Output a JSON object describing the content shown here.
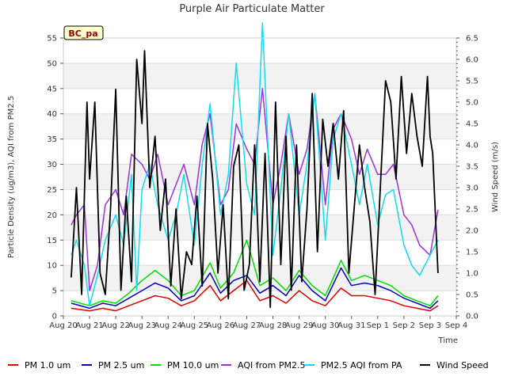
{
  "chart_data": {
    "type": "line",
    "title": "Purple Air Particulate Matter",
    "site_label": "BC_pa",
    "xlabel": "Time",
    "ylabel": "Particle Density (ug/m3), AQI from PM2.5",
    "y2label": "Wind Speed (m/s)",
    "x_ticks": [
      "Aug 20",
      "Aug 21",
      "Aug 22",
      "Aug 23",
      "Aug 24",
      "Aug 25",
      "Aug 26",
      "Aug 27",
      "Aug 28",
      "Aug 29",
      "Aug 30",
      "Aug 31",
      "Sep 1",
      "Sep 2",
      "Sep 3",
      "Sep 4"
    ],
    "x_range_days": [
      0,
      15
    ],
    "ylim": [
      0,
      55
    ],
    "y_ticks": [
      0,
      5,
      10,
      15,
      20,
      25,
      30,
      35,
      40,
      45,
      50,
      55
    ],
    "y2lim": [
      0,
      6.5
    ],
    "y2_ticks": [
      "0.0",
      "0.5",
      "1.0",
      "1.5",
      "2.0",
      "2.5",
      "3.0",
      "3.5",
      "4.0",
      "4.5",
      "5.0",
      "5.5",
      "6.0",
      "6.5"
    ],
    "grid": true,
    "legend_position": "bottom",
    "series": [
      {
        "name": "PM 1.0 um",
        "color": "#dd0000",
        "axis": "left",
        "x": [
          0.3,
          1.0,
          1.5,
          2.0,
          2.5,
          3.0,
          3.5,
          4.0,
          4.5,
          5.0,
          5.6,
          6.0,
          6.5,
          7.0,
          7.5,
          8.0,
          8.5,
          9.0,
          9.5,
          10.0,
          10.6,
          11.0,
          11.5,
          12.0,
          12.5,
          13.0,
          13.5,
          14.0,
          14.3
        ],
        "y": [
          1.5,
          1.0,
          1.5,
          1.0,
          2.0,
          3.0,
          4.0,
          3.5,
          2.0,
          3.0,
          6.0,
          3.0,
          5.0,
          7.0,
          3.0,
          4.0,
          2.5,
          5.0,
          3.0,
          2.0,
          5.5,
          4.0,
          4.0,
          3.5,
          3.0,
          2.0,
          1.5,
          1.0,
          2.0
        ]
      },
      {
        "name": "PM 2.5 um",
        "color": "#0000bb",
        "axis": "left",
        "x": [
          0.3,
          1.0,
          1.5,
          2.0,
          2.5,
          3.0,
          3.5,
          4.0,
          4.5,
          5.0,
          5.6,
          6.0,
          6.5,
          7.0,
          7.5,
          8.0,
          8.5,
          9.0,
          9.5,
          10.0,
          10.6,
          11.0,
          11.5,
          12.0,
          12.5,
          13.0,
          13.5,
          14.0,
          14.3
        ],
        "y": [
          2.5,
          1.5,
          2.5,
          2.0,
          3.5,
          5.0,
          6.5,
          5.5,
          3.0,
          4.0,
          8.5,
          4.5,
          7.0,
          8.0,
          4.5,
          6.0,
          4.0,
          8.0,
          5.0,
          3.0,
          9.5,
          6.0,
          6.5,
          6.0,
          5.0,
          3.5,
          2.5,
          1.5,
          3.0
        ]
      },
      {
        "name": "PM 10.0 um",
        "color": "#00dd00",
        "axis": "left",
        "x": [
          0.3,
          1.0,
          1.5,
          2.0,
          2.5,
          3.0,
          3.5,
          4.0,
          4.5,
          5.0,
          5.6,
          6.0,
          6.5,
          7.0,
          7.5,
          8.0,
          8.5,
          9.0,
          9.5,
          10.0,
          10.6,
          11.0,
          11.5,
          12.0,
          12.5,
          13.0,
          13.5,
          14.0,
          14.3
        ],
        "y": [
          3.0,
          2.0,
          3.0,
          2.5,
          4.5,
          7.0,
          9.0,
          7.0,
          4.0,
          5.0,
          10.5,
          5.5,
          8.5,
          15.0,
          6.0,
          7.5,
          5.0,
          9.0,
          6.0,
          4.0,
          11.0,
          7.0,
          8.0,
          7.0,
          6.0,
          4.0,
          3.0,
          2.0,
          4.0
        ]
      },
      {
        "name": "AQI from PM2.5",
        "color": "#9933dd",
        "axis": "left",
        "x": [
          0.3,
          0.5,
          0.8,
          1.0,
          1.3,
          1.6,
          2.0,
          2.3,
          2.6,
          3.0,
          3.3,
          3.6,
          4.0,
          4.3,
          4.6,
          5.0,
          5.3,
          5.6,
          6.0,
          6.3,
          6.6,
          7.0,
          7.3,
          7.6,
          8.0,
          8.3,
          8.6,
          9.0,
          9.3,
          9.6,
          10.0,
          10.3,
          10.6,
          11.0,
          11.3,
          11.6,
          12.0,
          12.3,
          12.6,
          13.0,
          13.3,
          13.6,
          14.0,
          14.3
        ],
        "y": [
          18,
          20,
          22,
          5,
          10,
          22,
          25,
          20,
          32,
          30,
          27,
          32,
          22,
          26,
          30,
          22,
          34,
          40,
          22,
          25,
          38,
          33,
          30,
          45,
          22,
          30,
          40,
          28,
          33,
          44,
          22,
          37,
          40,
          35,
          28,
          33,
          28,
          28,
          30,
          20,
          18,
          14,
          12,
          21
        ]
      },
      {
        "name": "PM2.5 AQI from PA",
        "color": "#11ddee",
        "axis": "left",
        "x": [
          0.3,
          0.5,
          0.8,
          1.0,
          1.3,
          1.6,
          2.0,
          2.3,
          2.6,
          2.8,
          3.0,
          3.3,
          3.6,
          4.0,
          4.3,
          4.6,
          5.0,
          5.3,
          5.6,
          6.0,
          6.3,
          6.6,
          7.0,
          7.3,
          7.6,
          8.0,
          8.3,
          8.6,
          9.0,
          9.3,
          9.6,
          10.0,
          10.3,
          10.6,
          11.0,
          11.3,
          11.6,
          12.0,
          12.3,
          12.6,
          13.0,
          13.3,
          13.6,
          14.0,
          14.3
        ],
        "y": [
          12,
          15,
          10,
          2,
          8,
          15,
          20,
          14,
          28,
          5,
          25,
          30,
          22,
          15,
          20,
          28,
          14,
          30,
          42,
          20,
          28,
          50,
          26,
          20,
          58,
          12,
          25,
          40,
          20,
          30,
          44,
          15,
          35,
          40,
          30,
          22,
          30,
          18,
          24,
          25,
          14,
          10,
          8,
          12,
          15
        ]
      },
      {
        "name": "Wind Speed",
        "color": "#000000",
        "axis": "right",
        "x": [
          0.3,
          0.5,
          0.7,
          0.9,
          1.0,
          1.2,
          1.4,
          1.6,
          1.8,
          2.0,
          2.2,
          2.4,
          2.6,
          2.8,
          3.0,
          3.1,
          3.3,
          3.5,
          3.7,
          3.9,
          4.1,
          4.3,
          4.5,
          4.7,
          4.9,
          5.1,
          5.3,
          5.5,
          5.7,
          5.9,
          6.1,
          6.3,
          6.5,
          6.7,
          6.9,
          7.1,
          7.3,
          7.5,
          7.7,
          7.9,
          8.1,
          8.3,
          8.5,
          8.7,
          8.9,
          9.1,
          9.3,
          9.5,
          9.7,
          9.9,
          10.1,
          10.3,
          10.5,
          10.7,
          10.9,
          11.1,
          11.3,
          11.5,
          11.7,
          11.9,
          12.1,
          12.3,
          12.5,
          12.7,
          12.9,
          13.1,
          13.3,
          13.5,
          13.7,
          13.9,
          14.0,
          14.1,
          14.3
        ],
        "y": [
          0.9,
          3.0,
          0.5,
          5.0,
          3.2,
          5.0,
          1.0,
          0.5,
          2.5,
          5.3,
          0.6,
          2.8,
          0.8,
          6.0,
          4.5,
          6.2,
          3.0,
          4.2,
          2.0,
          3.2,
          0.7,
          2.5,
          0.4,
          1.5,
          1.2,
          2.8,
          0.7,
          4.5,
          3.2,
          1.0,
          2.6,
          0.4,
          3.5,
          4.0,
          0.6,
          1.2,
          4.0,
          0.8,
          3.8,
          0.2,
          5.0,
          1.2,
          4.2,
          0.6,
          4.0,
          0.8,
          2.5,
          5.2,
          1.5,
          4.6,
          3.5,
          4.5,
          3.2,
          4.8,
          1.0,
          2.5,
          4.0,
          3.0,
          2.2,
          0.5,
          3.0,
          5.5,
          5.0,
          3.2,
          5.6,
          3.8,
          5.2,
          4.2,
          3.5,
          5.6,
          4.2,
          3.8,
          1.0
        ]
      }
    ]
  }
}
